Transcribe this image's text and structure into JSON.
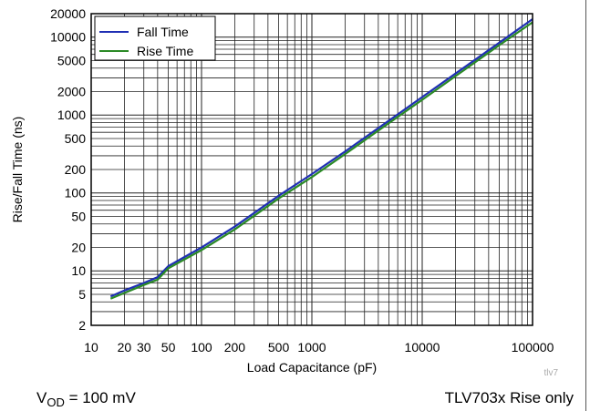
{
  "chart_data": {
    "type": "line",
    "xlabel": "Load Capacitance (pF)",
    "ylabel": "Rise/Fall Time (ns)",
    "xscale": "log",
    "yscale": "log",
    "xlim": [
      10,
      100000
    ],
    "ylim": [
      2,
      20000
    ],
    "x_ticks": [
      10,
      20,
      30,
      50,
      100,
      200,
      500,
      1000,
      10000,
      100000
    ],
    "x_tick_labels": [
      "10",
      "20",
      "30",
      "50",
      "100",
      "200",
      "500",
      "1000",
      "10000",
      "100000"
    ],
    "y_ticks": [
      2,
      5,
      10,
      20,
      50,
      100,
      200,
      500,
      1000,
      2000,
      5000,
      10000,
      20000
    ],
    "y_tick_labels": [
      "2",
      "5",
      "10",
      "20",
      "50",
      "100",
      "200",
      "500",
      "1000",
      "2000",
      "5000",
      "10000",
      "20000"
    ],
    "grid": true,
    "legend_position": "top-left",
    "series": [
      {
        "name": "Fall Time",
        "color": "#1f2fb4",
        "x": [
          15,
          20,
          30,
          40,
          50,
          100,
          200,
          500,
          1000,
          2000,
          5000,
          10000,
          20000,
          50000,
          100000
        ],
        "y": [
          4.7,
          5.6,
          7.0,
          8.3,
          11.5,
          20,
          37,
          92,
          175,
          340,
          850,
          1700,
          3400,
          8500,
          17000
        ]
      },
      {
        "name": "Rise Time",
        "color": "#2b8a26",
        "x": [
          15,
          20,
          30,
          40,
          50,
          100,
          200,
          500,
          1000,
          2000,
          5000,
          10000,
          20000,
          50000,
          100000
        ],
        "y": [
          4.4,
          5.2,
          6.6,
          7.7,
          10.8,
          18.5,
          34,
          85,
          160,
          315,
          790,
          1570,
          3150,
          7900,
          15500
        ]
      }
    ],
    "label_small": "tlv7"
  },
  "conditions": {
    "left_prefix": "V",
    "left_subscript": "OD",
    "left_suffix": " = 100 mV",
    "right": "TLV703x Rise only"
  }
}
